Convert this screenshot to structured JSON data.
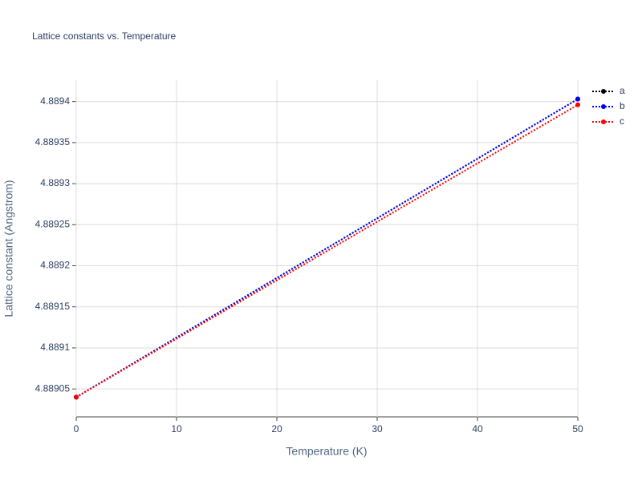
{
  "chart_data": {
    "type": "line",
    "title": "Lattice constants vs. Temperature",
    "xlabel": "Temperature (K)",
    "ylabel": "Lattice constant (Angstrom)",
    "x": [
      0,
      50
    ],
    "series": [
      {
        "name": "a",
        "color": "#000000",
        "values": [
          4.88904,
          4.889403
        ]
      },
      {
        "name": "b",
        "color": "#0000ff",
        "values": [
          4.88904,
          4.889403
        ]
      },
      {
        "name": "c",
        "color": "#ff0000",
        "values": [
          4.88904,
          4.889396
        ]
      }
    ],
    "xlim": [
      0,
      50
    ],
    "xticks": [
      0,
      10,
      20,
      30,
      40,
      50
    ],
    "ylim": [
      4.889016,
      4.889426
    ],
    "yticks": [
      4.88905,
      4.8891,
      4.88915,
      4.8892,
      4.88925,
      4.8893,
      4.88935,
      4.8894
    ],
    "grid": true,
    "legend": "top-right"
  }
}
